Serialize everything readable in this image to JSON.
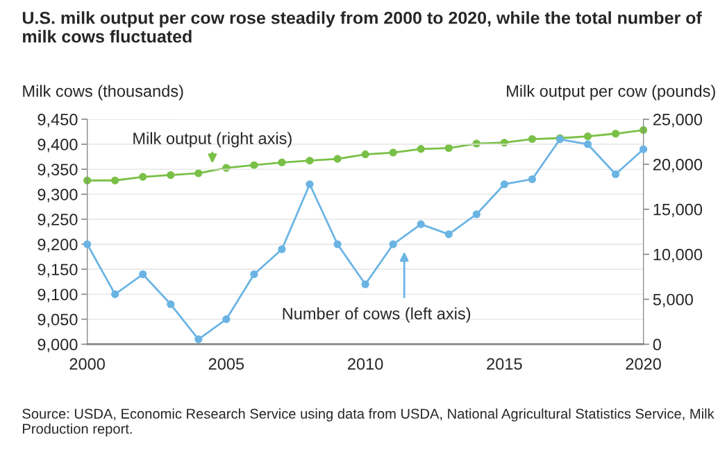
{
  "chart_data": {
    "type": "line",
    "title": "U.S. milk output per cow rose steadily from 2000 to 2020, while the total number of milk cows fluctuated",
    "ylabel": "Milk cows (thousands)",
    "y2label": "Milk output per cow (pounds)",
    "x": [
      2000,
      2001,
      2002,
      2003,
      2004,
      2005,
      2006,
      2007,
      2008,
      2009,
      2010,
      2011,
      2012,
      2013,
      2014,
      2015,
      2016,
      2017,
      2018,
      2019,
      2020
    ],
    "series": [
      {
        "color": "#6ab4e4",
        "values": [
          9200,
          9100,
          9140,
          9080,
          9010,
          9050,
          9140,
          9190,
          9320,
          9200,
          9120,
          9200,
          9240,
          9220,
          9260,
          9320,
          9330,
          9410,
          9400,
          9340,
          9390
        ]
      },
      {
        "color": "#79c046",
        "axis": "y2",
        "values": [
          18200,
          18200,
          18600,
          18800,
          19000,
          19600,
          19900,
          20200,
          20400,
          20600,
          21100,
          21300,
          21700,
          21800,
          22300,
          22400,
          22800,
          22900,
          23100,
          23400,
          23800
        ]
      }
    ],
    "xlim": [
      2000,
      2020
    ],
    "xticks": [
      2000,
      2005,
      2010,
      2015,
      2020
    ],
    "ylim": [
      9000,
      9450
    ],
    "yticks": [
      {
        "value": 9000,
        "label": "9,000"
      },
      {
        "value": 9050,
        "label": "9,050"
      },
      {
        "value": 9100,
        "label": "9,100"
      },
      {
        "value": 9150,
        "label": "9,150"
      },
      {
        "value": 9200,
        "label": "9,200"
      },
      {
        "value": 9250,
        "label": "9,250"
      },
      {
        "value": 9300,
        "label": "9,300"
      },
      {
        "value": 9350,
        "label": "9,350"
      },
      {
        "value": 9400,
        "label": "9,400"
      },
      {
        "value": 9450,
        "label": "9,450"
      }
    ],
    "y2lim": [
      0,
      25000
    ],
    "y2ticks": [
      0,
      {
        "value": 5000,
        "label": "5,000"
      },
      {
        "value": 10000,
        "label": "10,000"
      },
      {
        "value": 15000,
        "label": "15,000"
      },
      {
        "value": 20000,
        "label": "20,000"
      },
      {
        "value": 25000,
        "label": "25,000"
      }
    ],
    "annotations": [
      "Milk output (right axis)",
      "Number of cows (left axis)",
      "Source: USDA, Economic Research Service using data from USDA, National Agricultural Statistics Service, Milk Production report."
    ],
    "grid": "y",
    "marker": "circle",
    "line_style": "solid"
  }
}
